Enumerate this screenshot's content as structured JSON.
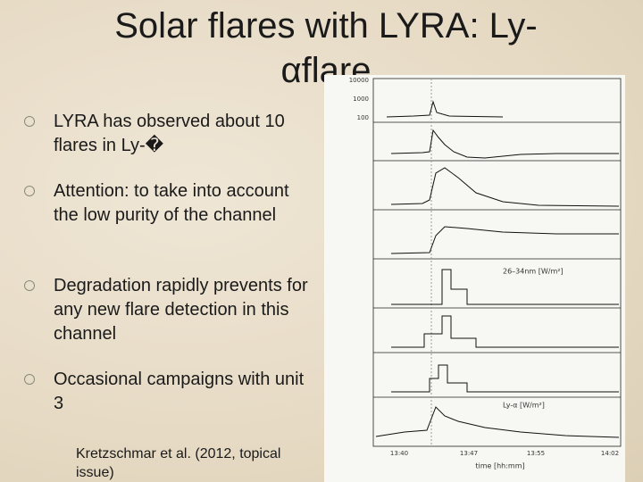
{
  "slide": {
    "title": "Solar flares with LYRA: Ly-αflare",
    "bullets": [
      "LYRA has observed about 10 flares in Ly-�",
      "Attention: to take into account the low purity of the channel",
      "Degradation rapidly prevents for any new flare detection in this channel",
      "Occasional campaigns with unit 3"
    ],
    "citation": "Kretzschmar et al. (2012, topical issue)",
    "figure": {
      "panel_labels": [
        "26–34nm [W/m²]",
        "Ly-α [W/m²]"
      ],
      "top_panel_ticks": [
        "10000",
        "1000",
        "100"
      ],
      "x_ticks": [
        "13:40",
        "13:47",
        "13:55",
        "14:02"
      ],
      "x_label": "time [hh:mm]"
    }
  }
}
